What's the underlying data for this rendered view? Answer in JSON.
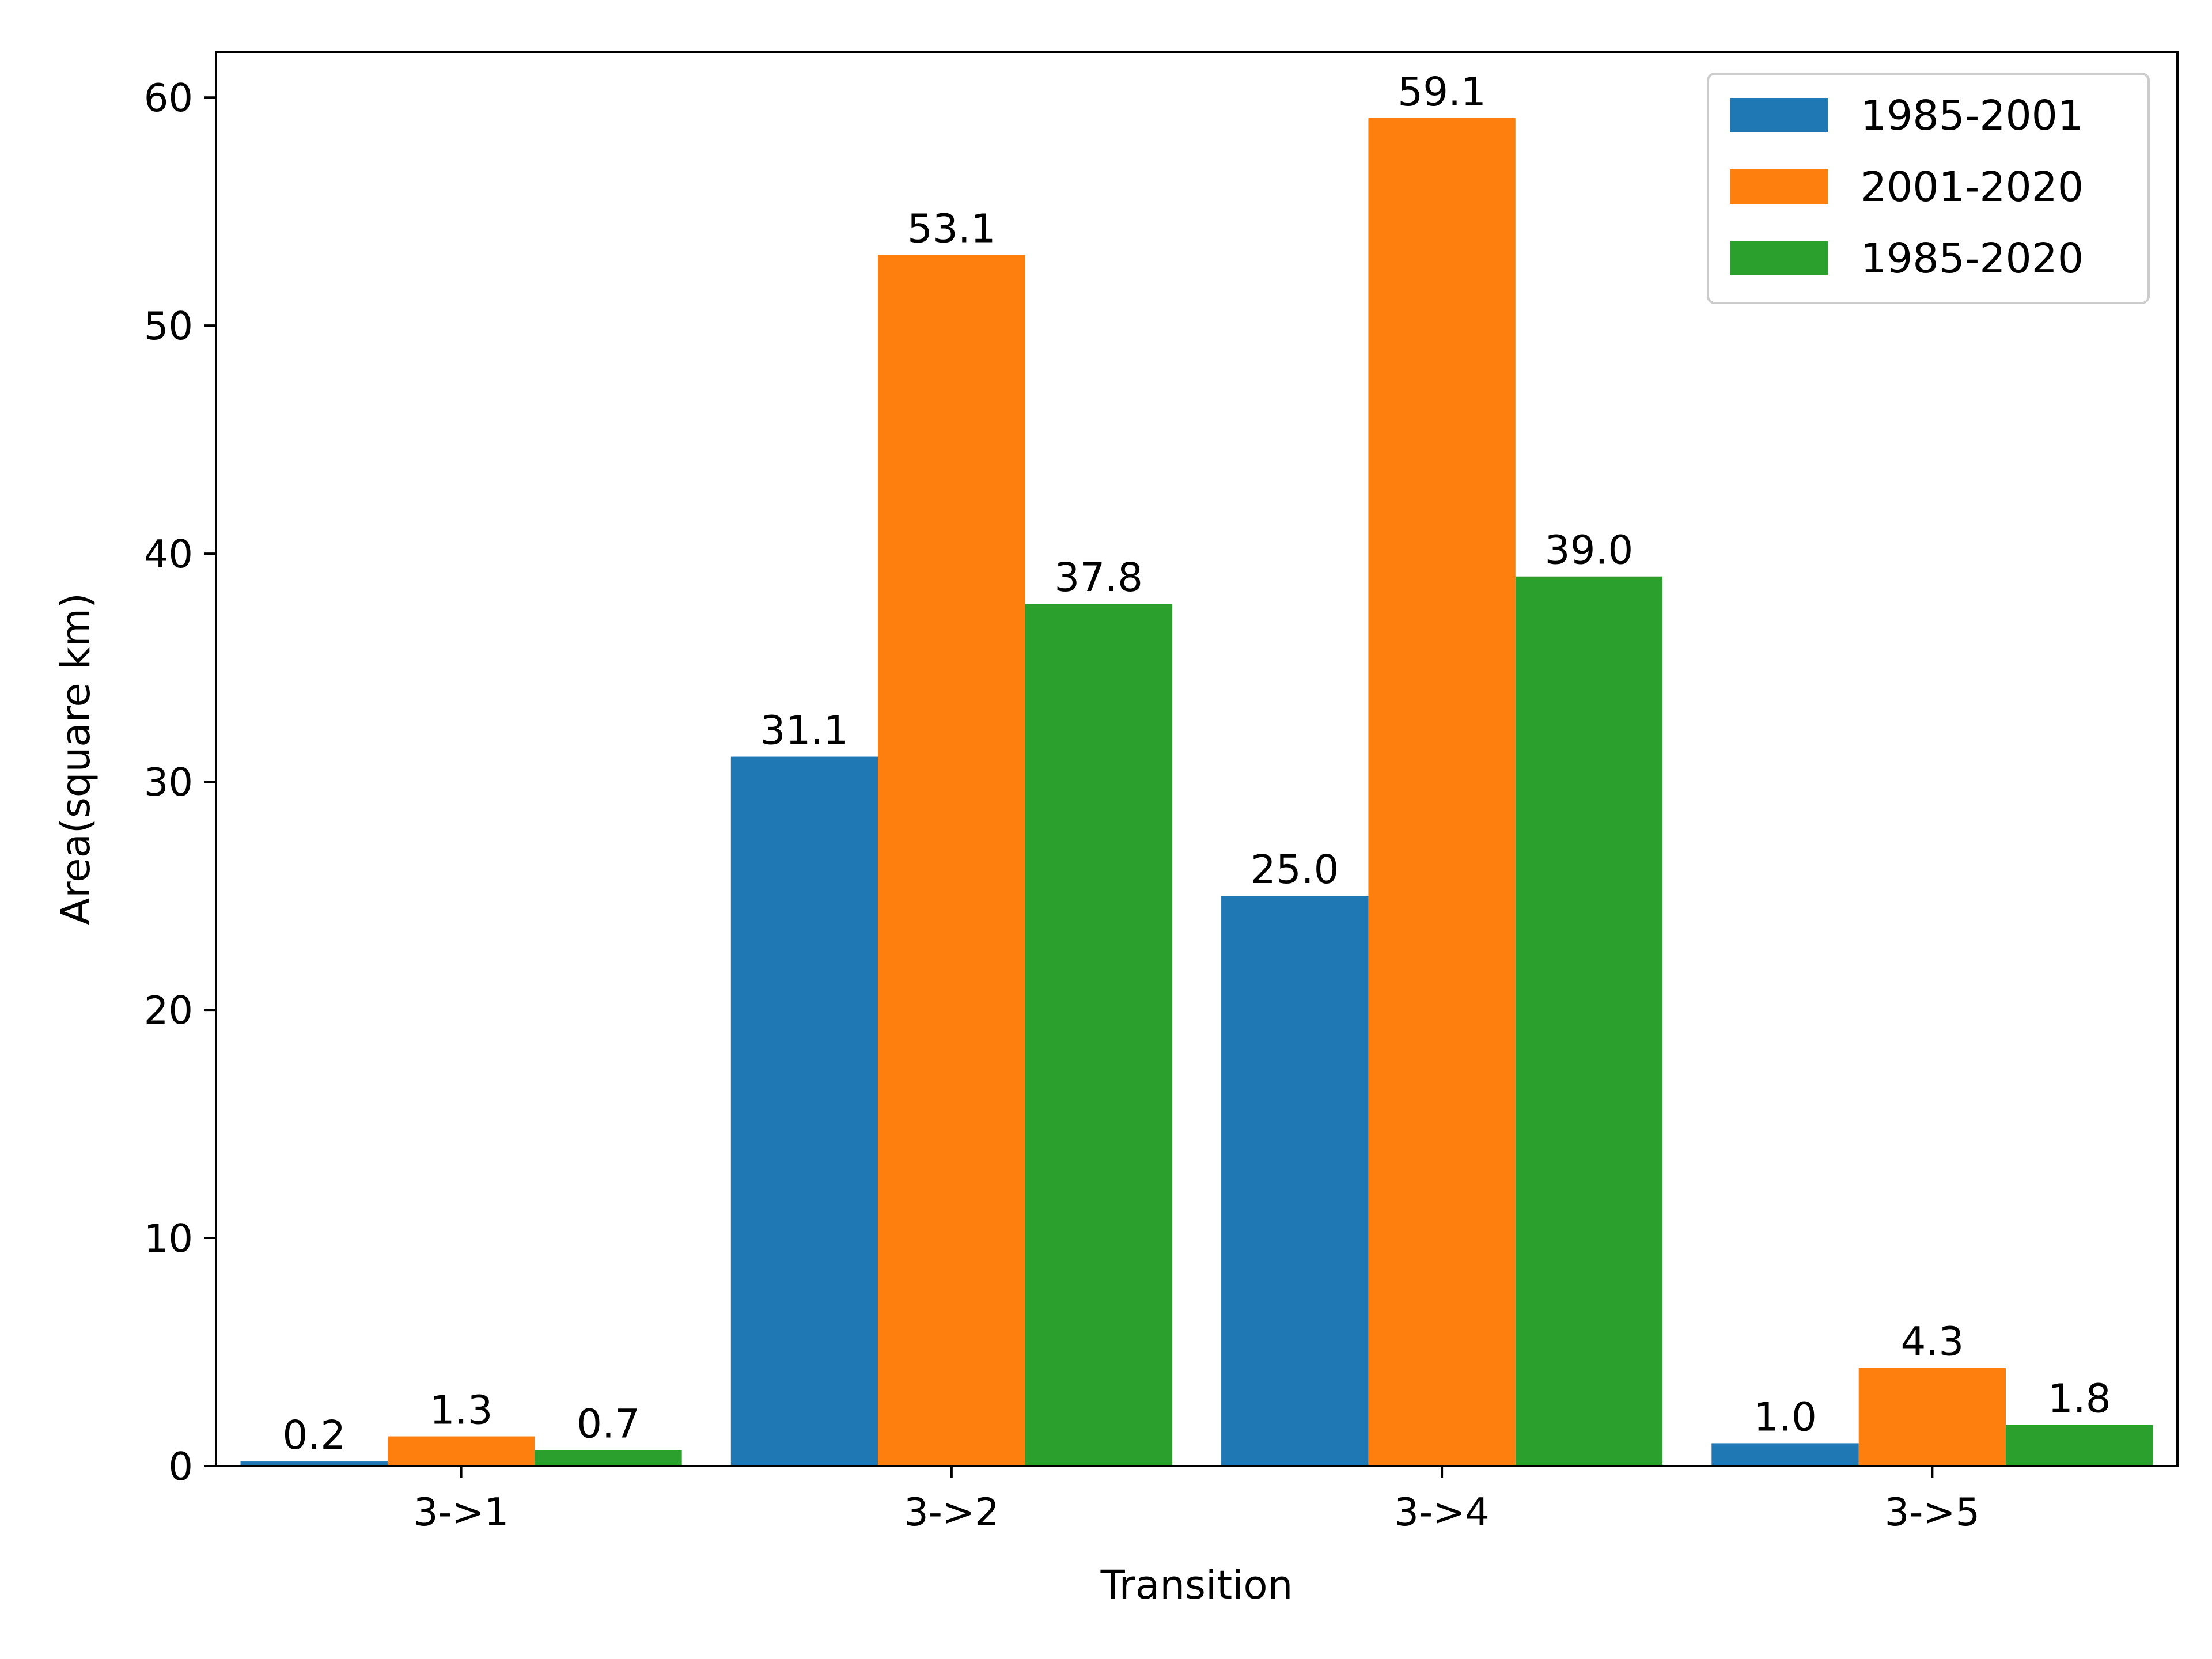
{
  "chart_data": {
    "type": "bar",
    "title": "",
    "xlabel": "Transition",
    "ylabel": "Area(square km)",
    "categories": [
      "3->1",
      "3->2",
      "3->4",
      "3->5"
    ],
    "series": [
      {
        "name": "1985-2001",
        "color": "#1f77b4",
        "values": [
          0.2,
          31.1,
          25.0,
          1.0
        ],
        "labels": [
          "0.2",
          "31.1",
          "25.0",
          "1.0"
        ]
      },
      {
        "name": "2001-2020",
        "color": "#ff7f0e",
        "values": [
          1.3,
          53.1,
          59.1,
          4.3
        ],
        "labels": [
          "1.3",
          "53.1",
          "59.1",
          "4.3"
        ]
      },
      {
        "name": "1985-2020",
        "color": "#2ca02c",
        "values": [
          0.7,
          37.8,
          39.0,
          1.8
        ],
        "labels": [
          "0.7",
          "37.8",
          "39.0",
          "1.8"
        ]
      }
    ],
    "ylim": [
      0,
      62
    ],
    "yticks": [
      0,
      10,
      20,
      30,
      40,
      50,
      60
    ],
    "grid": false,
    "legend": "top-right"
  }
}
